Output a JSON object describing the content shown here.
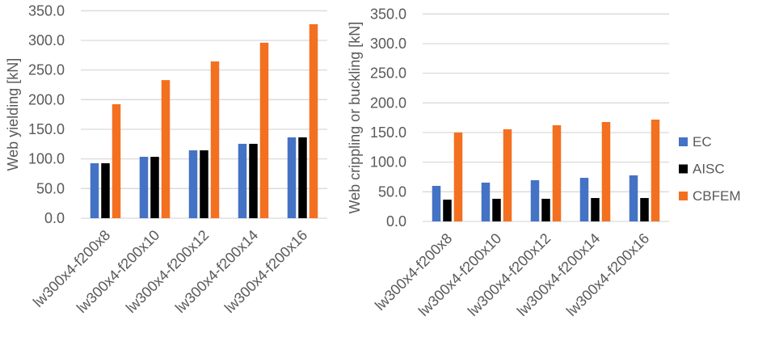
{
  "chart_data": [
    {
      "type": "bar",
      "title": "",
      "xlabel": "",
      "ylabel": "Web yielding [kN]",
      "ylim": [
        0,
        350
      ],
      "yticks": [
        "0.0",
        "50.0",
        "100.0",
        "150.0",
        "200.0",
        "250.0",
        "300.0",
        "350.0"
      ],
      "grid": true,
      "categories": [
        "lw300x4-f200x8",
        "lw300x4-f200x10",
        "lw300x4-f200x12",
        "lw300x4-f200x14",
        "lw300x4-f200x16"
      ],
      "series": [
        {
          "name": "EC",
          "color": "#4472c4",
          "values": [
            92.7,
            103.6,
            114.5,
            125.5,
            136.4
          ]
        },
        {
          "name": "AISC",
          "color": "#000000",
          "values": [
            92.7,
            103.6,
            114.5,
            125.5,
            136.4
          ]
        },
        {
          "name": "CBFEM",
          "color": "#f37021",
          "values": [
            192.3,
            233.0,
            264.5,
            296.0,
            327.3
          ]
        }
      ]
    },
    {
      "type": "bar",
      "title": "",
      "xlabel": "",
      "ylabel": "Web crippling or buckling [kN]",
      "ylim": [
        0,
        350
      ],
      "yticks": [
        "0.0",
        "50.0",
        "100.0",
        "150.0",
        "200.0",
        "250.0",
        "300.0",
        "350.0"
      ],
      "grid": true,
      "legend": "right",
      "categories": [
        "lw300x4-f200x8",
        "lw300x4-f200x10",
        "lw300x4-f200x12",
        "lw300x4-f200x14",
        "lw300x4-f200x16"
      ],
      "series": [
        {
          "name": "EC",
          "color": "#4472c4",
          "values": [
            60.0,
            65.5,
            69.5,
            73.6,
            77.7
          ]
        },
        {
          "name": "AISC",
          "color": "#000000",
          "values": [
            36.8,
            38.2,
            38.2,
            39.5,
            39.5
          ]
        },
        {
          "name": "CBFEM",
          "color": "#f37021",
          "values": [
            150.0,
            155.5,
            162.3,
            167.7,
            171.8
          ]
        }
      ]
    }
  ]
}
